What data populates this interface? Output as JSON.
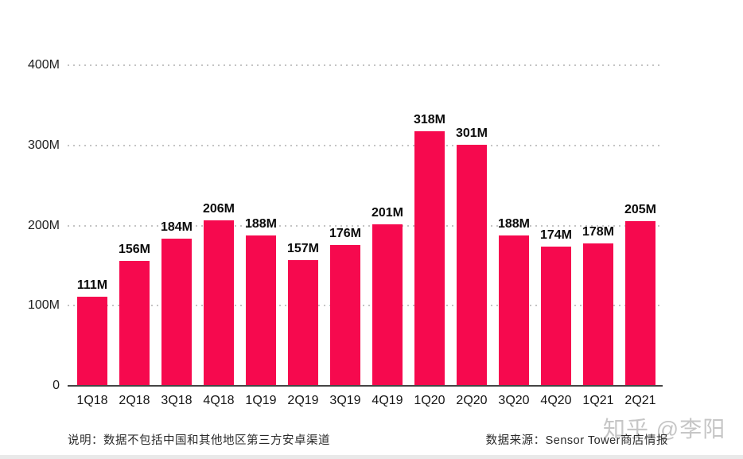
{
  "chart_data": {
    "type": "bar",
    "title": "",
    "categories": [
      "1Q18",
      "2Q18",
      "3Q18",
      "4Q18",
      "1Q19",
      "2Q19",
      "3Q19",
      "4Q19",
      "1Q20",
      "2Q20",
      "3Q20",
      "4Q20",
      "1Q21",
      "2Q21"
    ],
    "values": [
      111,
      156,
      184,
      206,
      188,
      157,
      176,
      201,
      318,
      301,
      188,
      174,
      178,
      205
    ],
    "value_suffix": "M",
    "xlabel": "",
    "ylabel": "",
    "ylim": [
      0,
      400
    ],
    "yticks": [
      0,
      100,
      200,
      300,
      400
    ],
    "ytick_labels": [
      "0",
      "100M",
      "200M",
      "300M",
      "400M"
    ],
    "grid": "horizontal-dotted",
    "legend": "none",
    "bar_color": "#f6094e"
  },
  "footer": {
    "note": "说明：数据不包括中国和其他地区第三方安卓渠道",
    "source": "数据来源：Sensor Tower商店情报"
  },
  "watermark": "知乎 @李阳",
  "colors": {
    "bar": "#f6094e",
    "grid": "#c4c4c4",
    "axis_line": "#454545",
    "value_label": "#0a0a0a",
    "tick_label": "#1f1f1f",
    "footer_text": "#2b2b2b",
    "watermark": "#c6c6c6",
    "background": "#ffffff"
  }
}
